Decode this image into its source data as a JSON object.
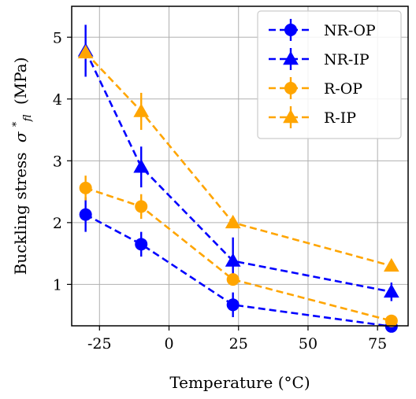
{
  "chart_data": {
    "type": "line",
    "xlabel": "Temperature (°C)",
    "ylabel": "Buckling stress",
    "ylabel_symbol": "σ",
    "ylabel_sup": "*",
    "ylabel_sub": "fl",
    "ylabel_unit": "(MPa)",
    "xlim": [
      -35,
      86
    ],
    "ylim": [
      0.33,
      5.5
    ],
    "xticks": [
      -25,
      0,
      25,
      50,
      75
    ],
    "xtick_labels": [
      "-25",
      "0",
      "25",
      "50",
      "75"
    ],
    "yticks": [
      1,
      2,
      3,
      4,
      5
    ],
    "ytick_labels": [
      "1",
      "2",
      "3",
      "4",
      "5"
    ],
    "grid": true,
    "legend_position": "top-right",
    "series": [
      {
        "name": "NR-OP",
        "color": "#0000ff",
        "marker": "circle",
        "x": [
          -30,
          -10,
          23,
          80
        ],
        "y": [
          2.13,
          1.65,
          0.67,
          0.32
        ],
        "err": [
          0.28,
          0.2,
          0.2,
          0.06
        ]
      },
      {
        "name": "NR-IP",
        "color": "#0000ff",
        "marker": "triangle",
        "x": [
          -30,
          -10,
          23,
          80
        ],
        "y": [
          4.78,
          2.9,
          1.38,
          0.88
        ],
        "err": [
          0.42,
          0.33,
          0.38,
          0.15
        ]
      },
      {
        "name": "R-OP",
        "color": "#ffa500",
        "marker": "circle",
        "x": [
          -30,
          -10,
          23,
          80
        ],
        "y": [
          2.56,
          2.26,
          1.08,
          0.41
        ],
        "err": [
          0.2,
          0.2,
          0.05,
          0.05
        ]
      },
      {
        "name": "R-IP",
        "color": "#ffa500",
        "marker": "triangle",
        "x": [
          -30,
          -10,
          23,
          80
        ],
        "y": [
          4.75,
          3.8,
          2.0,
          1.3
        ],
        "err": [
          0.1,
          0.3,
          0.05,
          0.05
        ]
      }
    ]
  }
}
